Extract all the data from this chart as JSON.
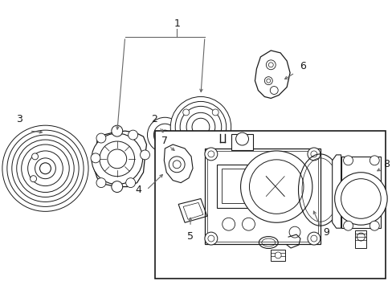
{
  "bg_color": "#ffffff",
  "line_color": "#1a1a1a",
  "gray_color": "#666666",
  "figsize": [
    4.89,
    3.6
  ],
  "dpi": 100,
  "label_fontsize": 9
}
